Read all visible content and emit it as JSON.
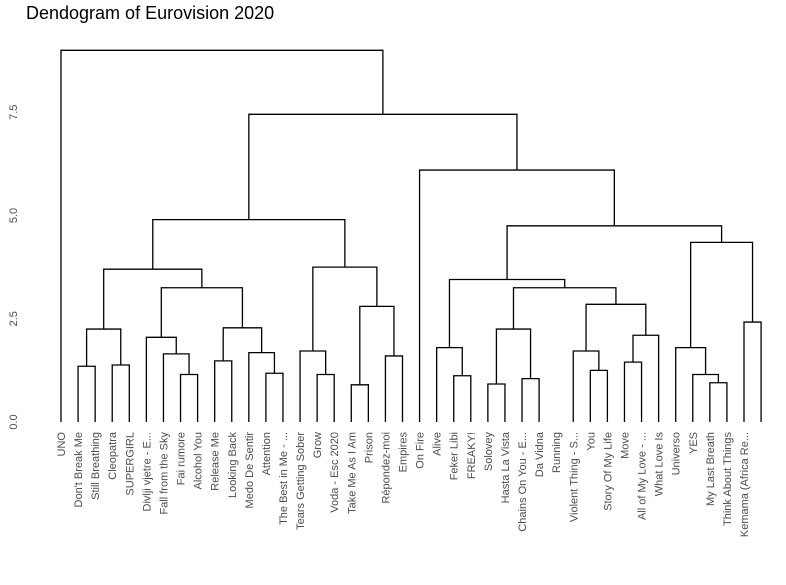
{
  "chart_data": {
    "type": "dendrogram",
    "title": "Dendogram of Eurovision 2020",
    "xlabel": "",
    "ylabel": "",
    "ylim": [
      0,
      9.2
    ],
    "yticks": [
      0.0,
      2.5,
      5.0,
      7.5
    ],
    "ytick_labels": [
      "0.0",
      "2.5",
      "5.0",
      "7.5"
    ],
    "grid": false,
    "leaves": [
      "UNO",
      "Don't Break Me",
      "Still Breathing",
      "Cleopatra",
      "SUPERGIRL",
      "Divlji vjetre - E...",
      "Fall from the Sky",
      "Fai rumore",
      "Alcohol You",
      "Release Me",
      "Looking Back",
      "Medo De Sentir",
      "Attention",
      "The Best in Me - ...",
      "Tears Getting Sober",
      "Grow",
      "Voda - Esc 2020",
      "Take Me As I Am",
      "Prison",
      "Répondez-moi",
      "Empires",
      "On Fire",
      "Alive",
      "Feker Libi",
      "FREAKY!",
      "Solovey",
      "Hasta La Vista",
      "Chains On You - E...",
      "Da Vidna",
      "Running",
      "Violent Thing - S...",
      "You",
      "Story Of My Life",
      "Move",
      "All of My Love - ...",
      "What Love Is",
      "Universo",
      "YES",
      "My Last Breath",
      "Think About Things",
      "Kemama (Africa Re..."
    ],
    "merges": [
      [
        1,
        2,
        1.35
      ],
      [
        3,
        4,
        1.38
      ],
      [
        -1,
        -2,
        2.25
      ],
      [
        7,
        8,
        1.15
      ],
      [
        6,
        -4,
        1.65
      ],
      [
        5,
        -5,
        2.05
      ],
      [
        12,
        13,
        1.18
      ],
      [
        11,
        -7,
        1.68
      ],
      [
        9,
        10,
        1.48
      ],
      [
        -9,
        -8,
        2.28
      ],
      [
        -6,
        -10,
        3.25
      ],
      [
        -3,
        -11,
        3.7
      ],
      [
        15,
        16,
        1.15
      ],
      [
        14,
        -13,
        1.72
      ],
      [
        19,
        20,
        1.6
      ],
      [
        17,
        18,
        0.9
      ],
      [
        -16,
        -15,
        2.8
      ],
      [
        -14,
        -17,
        3.75
      ],
      [
        -12,
        -18,
        4.9
      ],
      [
        23,
        24,
        1.12
      ],
      [
        22,
        -20,
        1.8
      ],
      [
        27,
        28,
        1.05
      ],
      [
        25,
        26,
        0.92
      ],
      [
        -23,
        -22,
        2.25
      ],
      [
        31,
        32,
        1.25
      ],
      [
        30,
        -25,
        1.72
      ],
      [
        33,
        34,
        1.45
      ],
      [
        -27,
        35,
        2.1
      ],
      [
        -26,
        -28,
        2.85
      ],
      [
        -24,
        -29,
        3.25
      ],
      [
        -21,
        -30,
        3.45
      ],
      [
        38,
        39,
        0.95
      ],
      [
        37,
        -32,
        1.15
      ],
      [
        36,
        -33,
        1.8
      ],
      [
        40,
        41,
        2.42
      ],
      [
        -34,
        -35,
        4.35
      ],
      [
        -31,
        -36,
        4.75
      ],
      [
        -37,
        21,
        6.1
      ],
      [
        -19,
        -38,
        7.45
      ],
      [
        0,
        -39,
        9.0
      ]
    ]
  }
}
